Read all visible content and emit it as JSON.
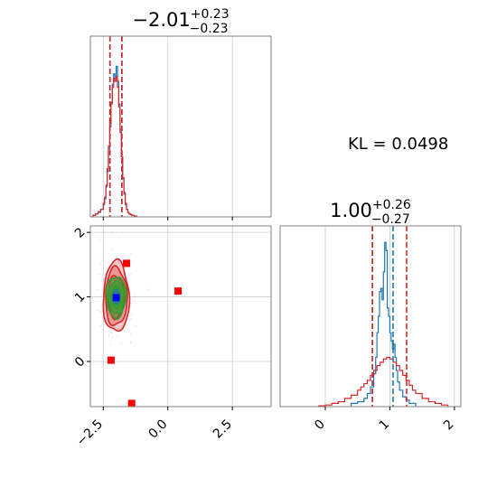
{
  "chart_data": [
    {
      "type": "histogram",
      "panel": "top-left",
      "title": {
        "main": "−2.01",
        "sup": "+0.23",
        "sub": "−0.23"
      },
      "xlim": [
        -3.0,
        4.0
      ],
      "grid": true,
      "x_ticks": [
        -2.5,
        0.0,
        2.5
      ],
      "series": [
        {
          "color": "#1f77b4",
          "style": "step",
          "x": [
            -2.9,
            -2.8,
            -2.7,
            -2.6,
            -2.5,
            -2.45,
            -2.4,
            -2.35,
            -2.3,
            -2.25,
            -2.2,
            -2.15,
            -2.1,
            -2.05,
            -2.0,
            -1.95,
            -1.9,
            -1.85,
            -1.8,
            -1.75,
            -1.7,
            -1.65,
            -1.6,
            -1.55,
            -1.5,
            -1.45,
            -1.4,
            -1.3,
            -1.2
          ],
          "y": [
            0.01,
            0.02,
            0.03,
            0.05,
            0.08,
            0.12,
            0.2,
            0.3,
            0.45,
            0.6,
            0.75,
            0.88,
            0.95,
            0.92,
            1.0,
            0.9,
            0.75,
            0.58,
            0.4,
            0.25,
            0.15,
            0.08,
            0.05,
            0.03,
            0.02,
            0.015,
            0.01,
            0.005,
            0.0
          ]
        },
        {
          "color": "#d62728",
          "style": "step",
          "x": [
            -2.9,
            -2.8,
            -2.7,
            -2.6,
            -2.5,
            -2.45,
            -2.4,
            -2.35,
            -2.3,
            -2.25,
            -2.2,
            -2.15,
            -2.1,
            -2.05,
            -2.0,
            -1.95,
            -1.9,
            -1.85,
            -1.8,
            -1.75,
            -1.7,
            -1.65,
            -1.6,
            -1.55,
            -1.5,
            -1.45,
            -1.4,
            -1.3,
            -1.2
          ],
          "y": [
            0.01,
            0.02,
            0.035,
            0.05,
            0.09,
            0.13,
            0.21,
            0.32,
            0.47,
            0.62,
            0.76,
            0.86,
            0.92,
            0.9,
            0.93,
            0.86,
            0.73,
            0.56,
            0.4,
            0.26,
            0.16,
            0.09,
            0.05,
            0.03,
            0.02,
            0.015,
            0.01,
            0.005,
            0.0
          ]
        }
      ],
      "vlines": [
        {
          "x": -2.24,
          "color": "#1f77b4"
        },
        {
          "x": -1.78,
          "color": "#1f77b4"
        },
        {
          "x": -2.24,
          "color": "#d62728"
        },
        {
          "x": -1.78,
          "color": "#d62728"
        }
      ]
    },
    {
      "type": "histogram",
      "panel": "bottom-right",
      "title": {
        "main": "1.00",
        "sup": "+0.26",
        "sub": "−0.27"
      },
      "xlim": [
        -0.7,
        2.1
      ],
      "grid": true,
      "x_ticks": [
        0,
        1,
        2
      ],
      "series": [
        {
          "color": "#1f77b4",
          "style": "step",
          "x": [
            0.4,
            0.5,
            0.6,
            0.65,
            0.7,
            0.75,
            0.78,
            0.8,
            0.82,
            0.84,
            0.86,
            0.88,
            0.9,
            0.92,
            0.94,
            0.96,
            0.98,
            1.0,
            1.02,
            1.04,
            1.06,
            1.08,
            1.1,
            1.12,
            1.15,
            1.2,
            1.25,
            1.3,
            1.4
          ],
          "y": [
            0.02,
            0.03,
            0.05,
            0.08,
            0.12,
            0.2,
            0.3,
            0.45,
            0.55,
            0.7,
            0.72,
            0.65,
            0.82,
            1.0,
            0.95,
            0.6,
            0.55,
            0.45,
            0.4,
            0.35,
            0.38,
            0.3,
            0.22,
            0.15,
            0.1,
            0.06,
            0.04,
            0.02,
            0.01
          ]
        },
        {
          "color": "#d62728",
          "style": "step",
          "x": [
            -0.1,
            0.0,
            0.1,
            0.2,
            0.3,
            0.4,
            0.5,
            0.55,
            0.6,
            0.65,
            0.7,
            0.75,
            0.8,
            0.85,
            0.9,
            0.95,
            1.0,
            1.05,
            1.1,
            1.15,
            1.2,
            1.25,
            1.3,
            1.35,
            1.4,
            1.5,
            1.6,
            1.7,
            1.8,
            1.9
          ],
          "y": [
            0.005,
            0.01,
            0.02,
            0.03,
            0.05,
            0.07,
            0.1,
            0.12,
            0.14,
            0.16,
            0.19,
            0.22,
            0.25,
            0.27,
            0.29,
            0.3,
            0.29,
            0.27,
            0.25,
            0.22,
            0.19,
            0.16,
            0.13,
            0.1,
            0.08,
            0.05,
            0.03,
            0.02,
            0.01,
            0.005
          ]
        }
      ],
      "vlines": [
        {
          "x": 0.73,
          "color": "#1f77b4"
        },
        {
          "x": 1.05,
          "color": "#1f77b4"
        },
        {
          "x": 0.73,
          "color": "#d62728"
        },
        {
          "x": 1.26,
          "color": "#d62728"
        }
      ]
    },
    {
      "type": "scatter",
      "panel": "bottom-left",
      "xlim": [
        -3.0,
        4.0
      ],
      "ylim": [
        -0.7,
        2.1
      ],
      "grid": true,
      "x_ticks": [
        -2.5,
        0.0,
        2.5
      ],
      "y_ticks": [
        0,
        1,
        2
      ],
      "density_center": [
        -2.0,
        1.0
      ],
      "contours": [
        {
          "color": "#d62728",
          "rx": 0.5,
          "ry": 0.55,
          "fill_opacity": 0.25
        },
        {
          "color": "#d62728",
          "rx": 0.42,
          "ry": 0.45,
          "fill_opacity": 0.3
        },
        {
          "color": "#d62728",
          "rx": 0.32,
          "ry": 0.33,
          "fill_opacity": 0.35
        },
        {
          "color": "#2ca02c",
          "rx": 0.38,
          "ry": 0.32,
          "fill_opacity": 0.45
        },
        {
          "color": "#2ca02c",
          "rx": 0.3,
          "ry": 0.25,
          "fill_opacity": 0.5
        },
        {
          "color": "#2ca02c",
          "rx": 0.2,
          "ry": 0.17,
          "fill_opacity": 0.5
        },
        {
          "color": "#1f77b4",
          "rx": 0.12,
          "ry": 0.11,
          "fill_opacity": 0.6
        }
      ],
      "markers": [
        {
          "x": -1.6,
          "y": 1.52,
          "color": "#ff0000",
          "shape": "square"
        },
        {
          "x": 0.4,
          "y": 1.09,
          "color": "#ff0000",
          "shape": "square"
        },
        {
          "x": -2.2,
          "y": 0.02,
          "color": "#ff0000",
          "shape": "square"
        },
        {
          "x": -1.4,
          "y": -0.65,
          "color": "#ff0000",
          "shape": "square"
        },
        {
          "x": -2.0,
          "y": 0.99,
          "color": "#0000ff",
          "shape": "square"
        }
      ]
    }
  ],
  "annotation": {
    "kl_text": "KL = 0.0498"
  }
}
